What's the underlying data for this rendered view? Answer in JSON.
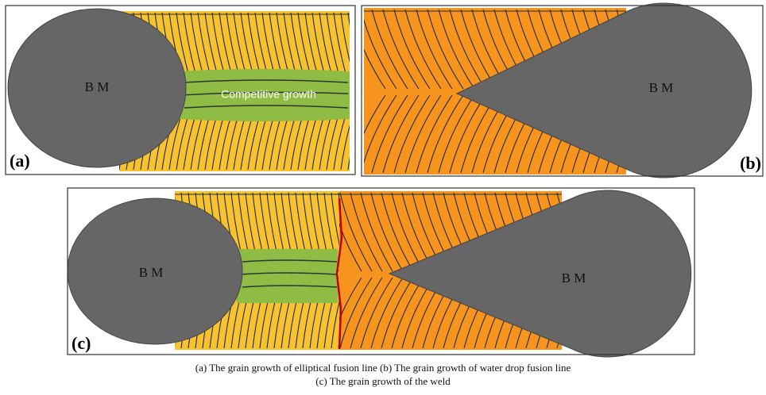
{
  "panels": {
    "a": {
      "label": "(a)",
      "base_metal": "B M",
      "annotation": "Competitive growth"
    },
    "b": {
      "label": "(b)",
      "base_metal": "B M"
    },
    "c": {
      "label": "(c)",
      "base_metal_left": "B M",
      "base_metal_right": "B M"
    }
  },
  "caption": {
    "line1": "(a)  The grain growth of elliptical fusion line  (b) The grain growth of water drop fusion line",
    "line2": "(c) The grain growth of  the weld"
  }
}
